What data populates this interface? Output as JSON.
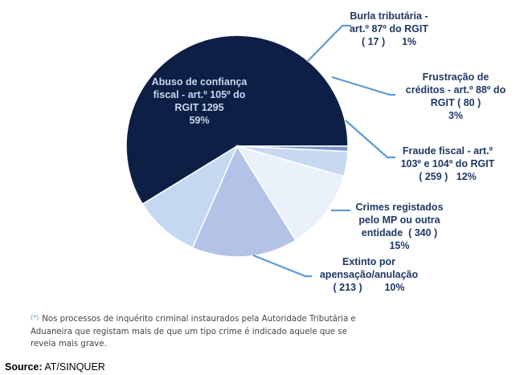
{
  "chart_data": {
    "type": "pie",
    "slices": [
      {
        "label": [
          "Abuso de confiança",
          "fiscal - art.º 105º do",
          "RGIT 1295",
          "59%"
        ],
        "count": 1295,
        "value": 59,
        "color": "#0d1f45"
      },
      {
        "label": [
          "Burla tributária -",
          "art.º 87º do RGIT",
          "( 17 )      1%"
        ],
        "count": 17,
        "value": 1,
        "color": "#7f96cc"
      },
      {
        "label": [
          "Frustração de",
          "créditos - art.º 88º do",
          "RGIT ( 80 )",
          "3%"
        ],
        "count": 80,
        "value": 3,
        "color": "#c6d9f1"
      },
      {
        "label": [
          "Fraude fiscal - art.º",
          "103º e 104º do RGIT",
          "( 259 )   12%"
        ],
        "count": 259,
        "value": 12,
        "color": "#eaf1fb"
      },
      {
        "label": [
          "Crimes registados",
          "pelo MP ou outra",
          "entidade  ( 340 )",
          "15%"
        ],
        "count": 340,
        "value": 15,
        "color": "#b3c3e8"
      },
      {
        "label": [
          "Extinto por",
          "apensação/anulação",
          "( 213 )        10%"
        ],
        "count": 213,
        "value": 10,
        "color": "#c4d8f2"
      }
    ]
  },
  "footnote": {
    "marker": "(*)",
    "text": "Nos processos de inquérito criminal instaurados pela Autoridade Tributária e Aduaneira que registam mais de que um tipo crime é indicado aquele que se revela mais grave."
  },
  "source": {
    "label": "Source:",
    "text": "AT/SINQUER"
  }
}
